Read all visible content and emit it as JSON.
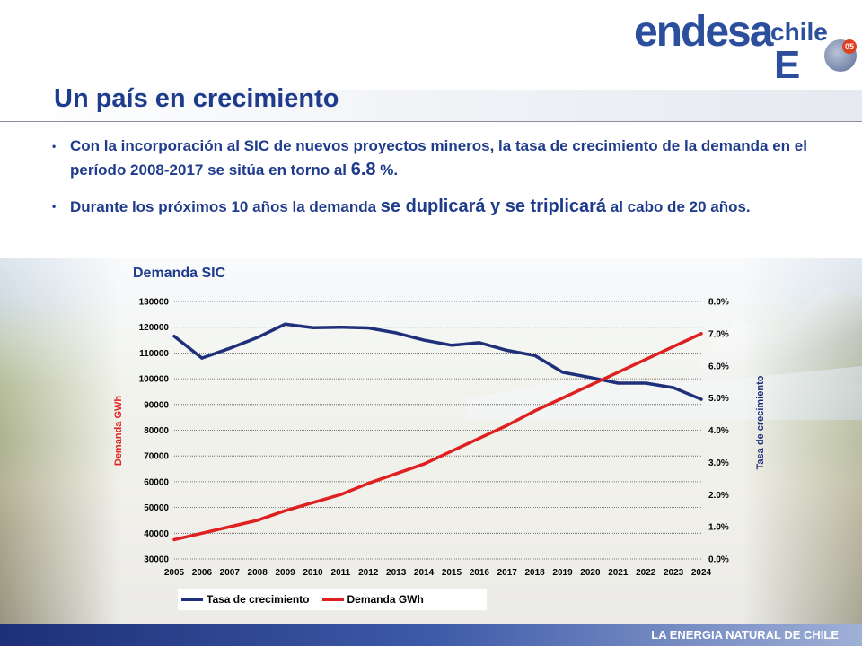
{
  "slide": {
    "title": "Un país en crecimiento",
    "footer": "LA ENERGIA NATURAL DE CHILE",
    "bullet_marker": "•"
  },
  "logo": {
    "word": "endesa",
    "sub": "chile",
    "letter": "E",
    "badge": "05"
  },
  "bullets": [
    {
      "text_a": "Con la incorporación al SIC de nuevos proyectos mineros, la tasa de crecimiento de la demanda en el período 2008-2017 se sitúa en torno al ",
      "text_big": "6.8",
      "text_b": " %."
    },
    {
      "text_a": "Durante los próximos 10 años la demanda ",
      "text_big": "se duplicará y se triplicará",
      "text_b": " al cabo de 20 años."
    }
  ],
  "colors": {
    "navy": "#1f2f7a",
    "red": "#e02020",
    "title_blue": "#1f3b8c"
  },
  "chart_data": {
    "type": "line",
    "title": "Demanda SIC",
    "x": [
      "2005",
      "2006",
      "2007",
      "2008",
      "2009",
      "2010",
      "2011",
      "2012",
      "2013",
      "2014",
      "2015",
      "2016",
      "2017",
      "2018",
      "2019",
      "2020",
      "2021",
      "2022",
      "2023",
      "2024"
    ],
    "ylabel_left": "Demanda GWh",
    "ylabel_right": "Tasa de crecimiento",
    "ylim_left": [
      30000,
      130000
    ],
    "ylim_right": [
      0.0,
      8.0
    ],
    "yticks_left": [
      "130000",
      "120000",
      "110000",
      "100000",
      "90000",
      "80000",
      "70000",
      "60000",
      "50000",
      "40000",
      "30000"
    ],
    "yticks_right": [
      "8.0%",
      "7.0%",
      "6.0%",
      "5.0%",
      "4.0%",
      "3.0%",
      "2.0%",
      "1.0%",
      "0.0%"
    ],
    "grid": true,
    "legend_position": "bottom-left",
    "series": [
      {
        "name": "Tasa de crecimiento",
        "axis": "left",
        "color": "#1f2f7a",
        "values": [
          116500,
          108000,
          111800,
          116000,
          121200,
          119800,
          120000,
          119700,
          117800,
          115000,
          113000,
          114000,
          111000,
          109000,
          102500,
          100500,
          98300,
          98300,
          96500,
          92000
        ]
      },
      {
        "name": "Demanda GWh",
        "axis": "right",
        "color": "#e02020",
        "values": [
          0.6,
          0.8,
          1.0,
          1.2,
          1.5,
          1.75,
          2.0,
          2.35,
          2.65,
          2.95,
          3.35,
          3.75,
          4.15,
          4.6,
          5.0,
          5.4,
          5.8,
          6.2,
          6.6,
          7.0
        ]
      }
    ]
  }
}
